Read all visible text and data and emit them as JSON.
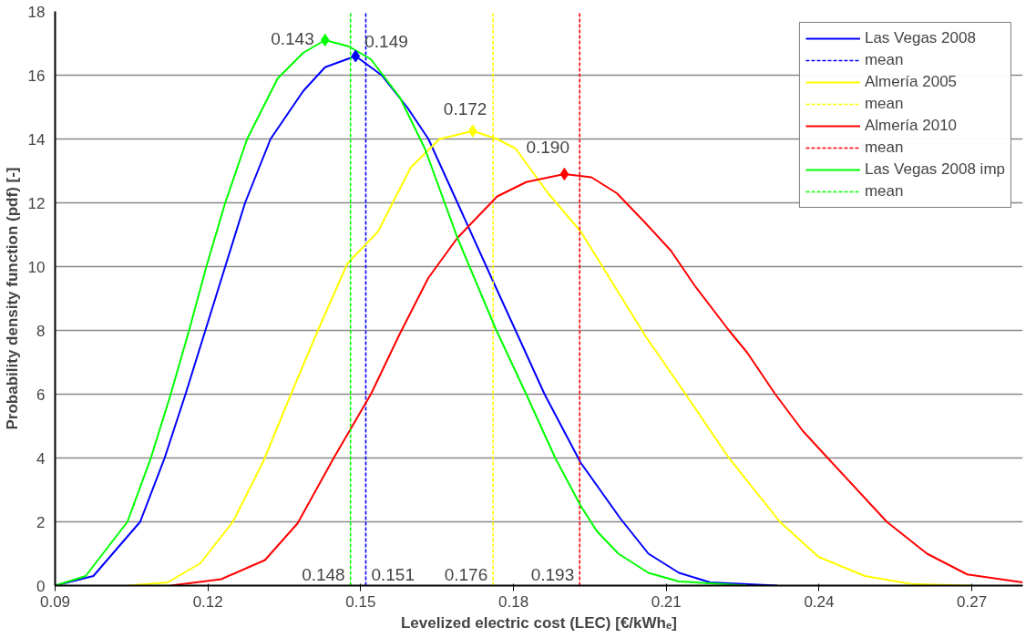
{
  "chart_data": {
    "type": "line",
    "xlabel": "Levelized electric cost (LEC) [€/kWhₑ]",
    "ylabel": "Probability density function (pdf) [-]",
    "xlim": [
      0.09,
      0.28
    ],
    "ylim": [
      0,
      18
    ],
    "xticks": [
      0.09,
      0.12,
      0.15,
      0.18,
      0.21,
      0.24,
      0.27
    ],
    "yticks": [
      0,
      2,
      4,
      6,
      8,
      10,
      12,
      14,
      16,
      18
    ],
    "grid": "y",
    "legend": "top right",
    "line_style": "solid",
    "marker": "none",
    "series": [
      {
        "name": "Las Vegas 2008",
        "color": "#0000ff",
        "x": [
          0.09,
          0.0975,
          0.1067,
          0.1115,
          0.1156,
          0.1195,
          0.1234,
          0.1273,
          0.1323,
          0.1387,
          0.143,
          0.149,
          0.1541,
          0.1591,
          0.1633,
          0.169,
          0.1761,
          0.1804,
          0.1861,
          0.1932,
          0.201,
          0.2065,
          0.2125,
          0.2186,
          0.2318
        ],
        "values": [
          0,
          0.3,
          2,
          4,
          6,
          8,
          10,
          12,
          14,
          15.5,
          16.25,
          16.6,
          16.0,
          15.0,
          14.0,
          12,
          9.5,
          8,
          6,
          3.85,
          2.1,
          1.0,
          0.4,
          0.1,
          0
        ]
      },
      {
        "name": "mean",
        "color": "#0000ff",
        "line_style": "dashed",
        "x": [
          0.151,
          0.151
        ],
        "values": [
          0,
          18
        ]
      },
      {
        "name": "Almería 2005",
        "color": "#ffff00",
        "x": [
          0.1042,
          0.1121,
          0.1185,
          0.1249,
          0.1309,
          0.1363,
          0.1416,
          0.1474,
          0.1534,
          0.1598,
          0.1655,
          0.172,
          0.1768,
          0.1804,
          0.1868,
          0.1932,
          0.1996,
          0.206,
          0.2138,
          0.2223,
          0.2323,
          0.2399,
          0.249,
          0.2581,
          0.27
        ],
        "values": [
          0,
          0.1,
          0.7,
          2,
          3.9,
          6,
          8,
          10.1,
          11.1,
          13.1,
          14.0,
          14.25,
          14.0,
          13.7,
          12.3,
          11.1,
          9.45,
          7.8,
          6,
          4,
          2,
          0.9,
          0.3,
          0.05,
          0
        ]
      },
      {
        "name": "mean",
        "color": "#ffff00",
        "line_style": "dashed",
        "x": [
          0.176,
          0.176
        ],
        "values": [
          0,
          18
        ]
      },
      {
        "name": "Almería 2010",
        "color": "#ff0000",
        "x": [
          0.1127,
          0.1226,
          0.1312,
          0.1376,
          0.1447,
          0.152,
          0.1577,
          0.1633,
          0.169,
          0.1768,
          0.1825,
          0.19,
          0.1953,
          0.2003,
          0.206,
          0.2109,
          0.2156,
          0.2223,
          0.2259,
          0.2314,
          0.2368,
          0.2417,
          0.2533,
          0.2612,
          0.2691,
          0.28
        ],
        "values": [
          0,
          0.2,
          0.8,
          1.95,
          4,
          6,
          7.9,
          9.65,
          10.9,
          12.2,
          12.65,
          12.9,
          12.8,
          12.3,
          11.35,
          10.5,
          9.4,
          8,
          7.3,
          6,
          4.85,
          4,
          2,
          1.0,
          0.35,
          0.1
        ]
      },
      {
        "name": "mean",
        "color": "#ff0000",
        "line_style": "dashed",
        "x": [
          0.193,
          0.193
        ],
        "values": [
          0,
          18
        ]
      },
      {
        "name": "Las Vegas 2008 imp",
        "color": "#00ff00",
        "x": [
          0.09,
          0.096,
          0.1042,
          0.1088,
          0.1127,
          0.1163,
          0.1197,
          0.1234,
          0.1277,
          0.1337,
          0.1387,
          0.143,
          0.1477,
          0.152,
          0.1577,
          0.1626,
          0.169,
          0.1765,
          0.1825,
          0.1882,
          0.1932,
          0.1964,
          0.2006,
          0.2065,
          0.2125,
          0.2259
        ],
        "values": [
          0,
          0.3,
          2,
          4,
          6,
          8,
          10,
          12,
          14,
          15.9,
          16.7,
          17.1,
          16.9,
          16.5,
          15.3,
          13.7,
          10.9,
          8.05,
          6,
          4,
          2.5,
          1.7,
          1.0,
          0.4,
          0.13,
          0
        ]
      },
      {
        "name": "mean",
        "color": "#00ff00",
        "line_style": "dashed",
        "x": [
          0.148,
          0.148
        ],
        "values": [
          0,
          18
        ]
      },
      {
        "type": "scatter",
        "marker": "diamond",
        "x": [
          0.143,
          0.149,
          0.172,
          0.19
        ],
        "values": [
          17.1,
          16.6,
          14.25,
          12.9
        ],
        "colors": [
          "#00ff00",
          "#0000ff",
          "#ffff00",
          "#ff0000"
        ]
      }
    ],
    "annotations": [
      {
        "text": "0.143",
        "x": 0.143,
        "y": 17.1
      },
      {
        "text": "0.149",
        "x": 0.149,
        "y": 16.6
      },
      {
        "text": "0.172",
        "x": 0.172,
        "y": 14.25
      },
      {
        "text": "0.190",
        "x": 0.19,
        "y": 12.9
      },
      {
        "text": "0.148",
        "x": 0.148,
        "y": 0
      },
      {
        "text": "0.151",
        "x": 0.151,
        "y": 0
      },
      {
        "text": "0.176",
        "x": 0.176,
        "y": 0
      },
      {
        "text": "0.193",
        "x": 0.193,
        "y": 0
      }
    ]
  }
}
